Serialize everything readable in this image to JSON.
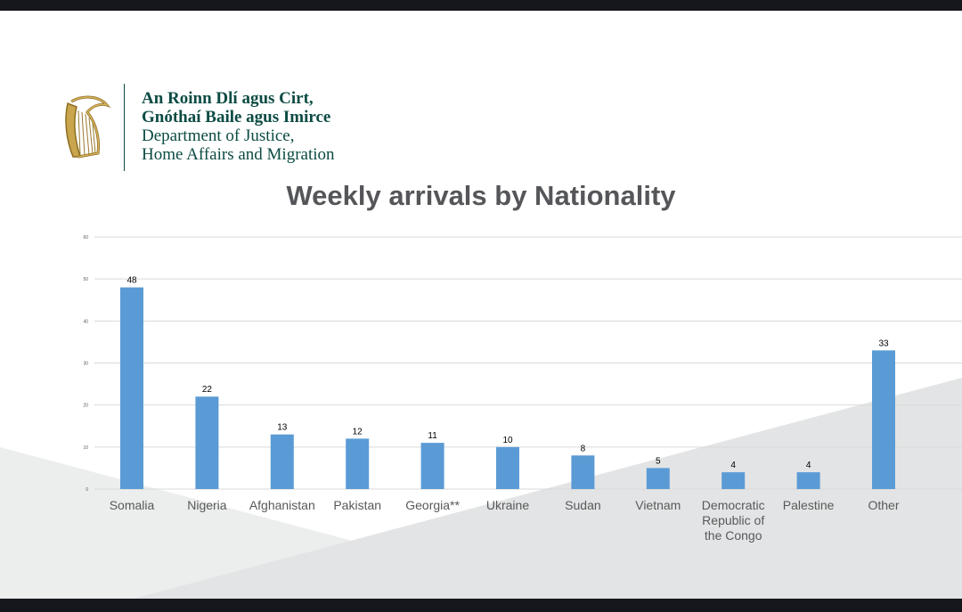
{
  "logo": {
    "line1": "An Roinn Dlí agus Cirt,",
    "line2": "Gnóthaí Baile agus Imirce",
    "line3": "Department of Justice,",
    "line4": "Home Affairs and Migration",
    "icon": "harp-icon",
    "color": "#0b4b43"
  },
  "chart_data": {
    "type": "bar",
    "title": "Weekly arrivals by Nationality",
    "categories": [
      "Somalia",
      "Nigeria",
      "Afghanistan",
      "Pakistan",
      "Georgia**",
      "Ukraine",
      "Sudan",
      "Vietnam",
      "Democratic Republic of the Congo",
      "Palestine",
      "Other"
    ],
    "category_lines": [
      [
        "Somalia"
      ],
      [
        "Nigeria"
      ],
      [
        "Afghanistan"
      ],
      [
        "Pakistan"
      ],
      [
        "Georgia**"
      ],
      [
        "Ukraine"
      ],
      [
        "Sudan"
      ],
      [
        "Vietnam"
      ],
      [
        "Democratic",
        "Republic of",
        "the Congo"
      ],
      [
        "Palestine"
      ],
      [
        "Other"
      ]
    ],
    "values": [
      48,
      22,
      13,
      12,
      11,
      10,
      8,
      5,
      4,
      4,
      33
    ],
    "ylim": [
      0,
      60
    ],
    "yticks": [
      0,
      10,
      20,
      30,
      40,
      50,
      60
    ],
    "grid": true,
    "bar_color": "#5b9bd5",
    "xlabel": "",
    "ylabel": ""
  }
}
